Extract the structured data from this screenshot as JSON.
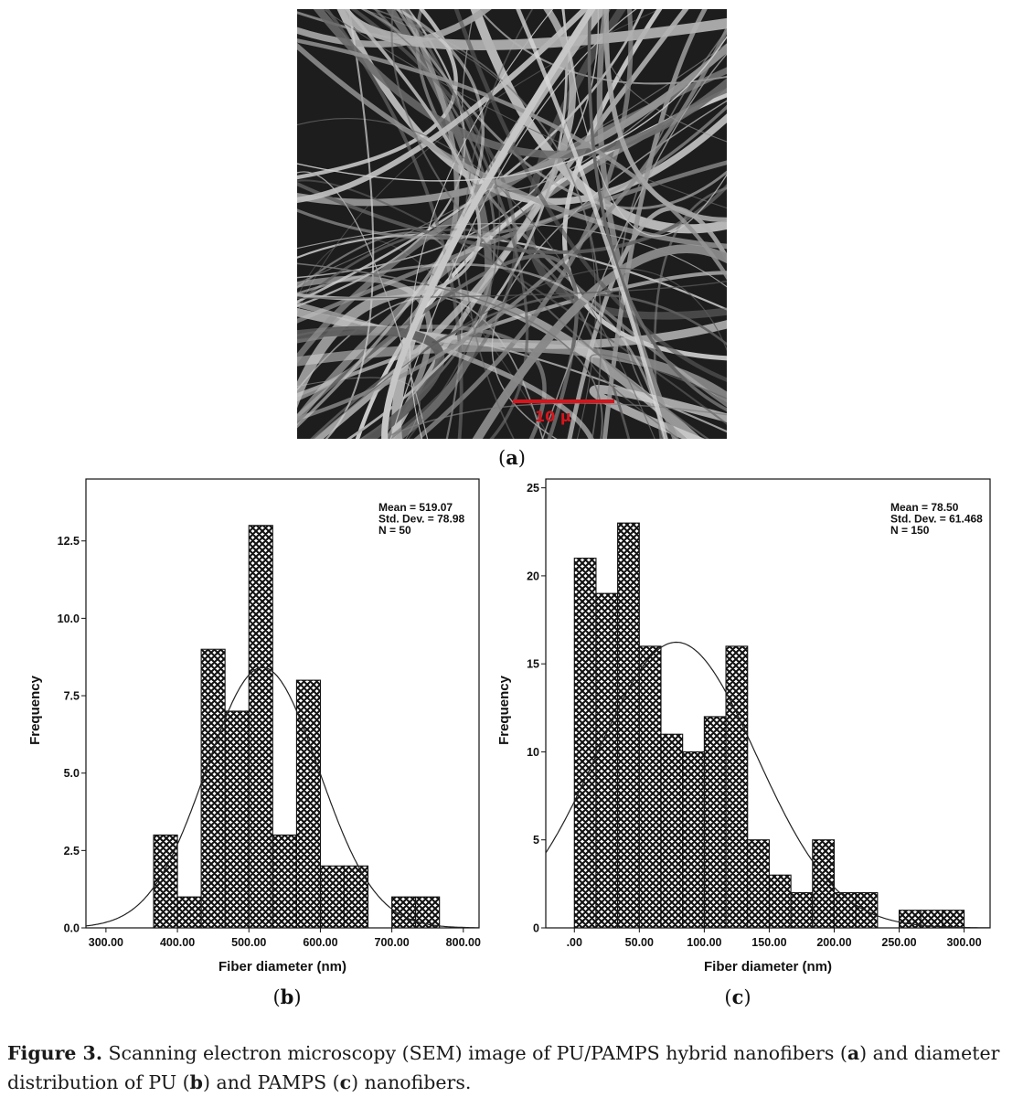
{
  "panel_a": {
    "letter": "a",
    "scale_bar_label": "10 μ",
    "scale_bar_color": "#d8141c"
  },
  "panel_b": {
    "letter": "b"
  },
  "panel_c": {
    "letter": "c"
  },
  "chart_data": [
    {
      "type": "bar",
      "panel": "b",
      "xlabel": "Fiber diameter (nm)",
      "ylabel": "Frequency",
      "xlim": [
        272,
        822
      ],
      "ylim": [
        0,
        14.5
      ],
      "xticks": [
        300,
        400,
        500,
        600,
        700,
        800
      ],
      "xtick_labels": [
        "300.00",
        "400.00",
        "500.00",
        "600.00",
        "700.00",
        "800.00"
      ],
      "yticks": [
        0,
        2.5,
        5,
        7.5,
        10,
        12.5
      ],
      "ytick_labels": [
        "0.0",
        "2.5",
        "5.0",
        "7.5",
        "10.0",
        "12.5"
      ],
      "bin_width": 33.3,
      "bins": [
        {
          "start": 366.7,
          "count": 3
        },
        {
          "start": 400.0,
          "count": 1
        },
        {
          "start": 433.3,
          "count": 9
        },
        {
          "start": 466.7,
          "count": 7
        },
        {
          "start": 500.0,
          "count": 13
        },
        {
          "start": 533.3,
          "count": 3
        },
        {
          "start": 566.7,
          "count": 8
        },
        {
          "start": 600.0,
          "count": 2
        },
        {
          "start": 633.3,
          "count": 2
        },
        {
          "start": 700.0,
          "count": 1
        },
        {
          "start": 733.3,
          "count": 1
        }
      ],
      "normal_curve": {
        "mean": 519.07,
        "sd": 78.98,
        "n": 50
      },
      "stats": [
        "Mean = 519.07",
        "Std. Dev. = 78.98",
        "N = 50"
      ],
      "grid": false,
      "legend": "top-right"
    },
    {
      "type": "bar",
      "panel": "c",
      "xlabel": "Fiber diameter (nm)",
      "ylabel": "Frequency",
      "xlim": [
        -22,
        320
      ],
      "ylim": [
        0,
        25.5
      ],
      "xticks": [
        0,
        50,
        100,
        150,
        200,
        250,
        300
      ],
      "xtick_labels": [
        ".00",
        "50.00",
        "100.00",
        "150.00",
        "200.00",
        "250.00",
        "300.00"
      ],
      "yticks": [
        0,
        5,
        10,
        15,
        20,
        25
      ],
      "ytick_labels": [
        "0",
        "5",
        "10",
        "15",
        "20",
        "25"
      ],
      "bin_width": 16.67,
      "bins": [
        {
          "start": 0.0,
          "count": 21
        },
        {
          "start": 16.67,
          "count": 19
        },
        {
          "start": 33.33,
          "count": 23
        },
        {
          "start": 50.0,
          "count": 16
        },
        {
          "start": 66.67,
          "count": 11
        },
        {
          "start": 83.33,
          "count": 10
        },
        {
          "start": 100.0,
          "count": 12
        },
        {
          "start": 116.67,
          "count": 16
        },
        {
          "start": 133.33,
          "count": 5
        },
        {
          "start": 150.0,
          "count": 3
        },
        {
          "start": 166.67,
          "count": 2
        },
        {
          "start": 183.33,
          "count": 5
        },
        {
          "start": 200.0,
          "count": 2
        },
        {
          "start": 216.67,
          "count": 2
        },
        {
          "start": 250.0,
          "count": 1
        },
        {
          "start": 266.67,
          "count": 1
        },
        {
          "start": 283.33,
          "count": 1
        }
      ],
      "normal_curve": {
        "mean": 78.5,
        "sd": 61.468,
        "n": 150
      },
      "stats": [
        "Mean = 78.50",
        "Std. Dev. = 61.468",
        "N = 150"
      ],
      "grid": false,
      "legend": "top-right"
    }
  ],
  "caption": {
    "label": "Figure 3.",
    "text_parts": [
      " Scanning electron microscopy (SEM) image of PU/PAMPS hybrid nanofibers (",
      "a",
      ") and diameter distribution of PU (",
      "b",
      ") and PAMPS (",
      "c",
      ") nanofibers."
    ]
  }
}
